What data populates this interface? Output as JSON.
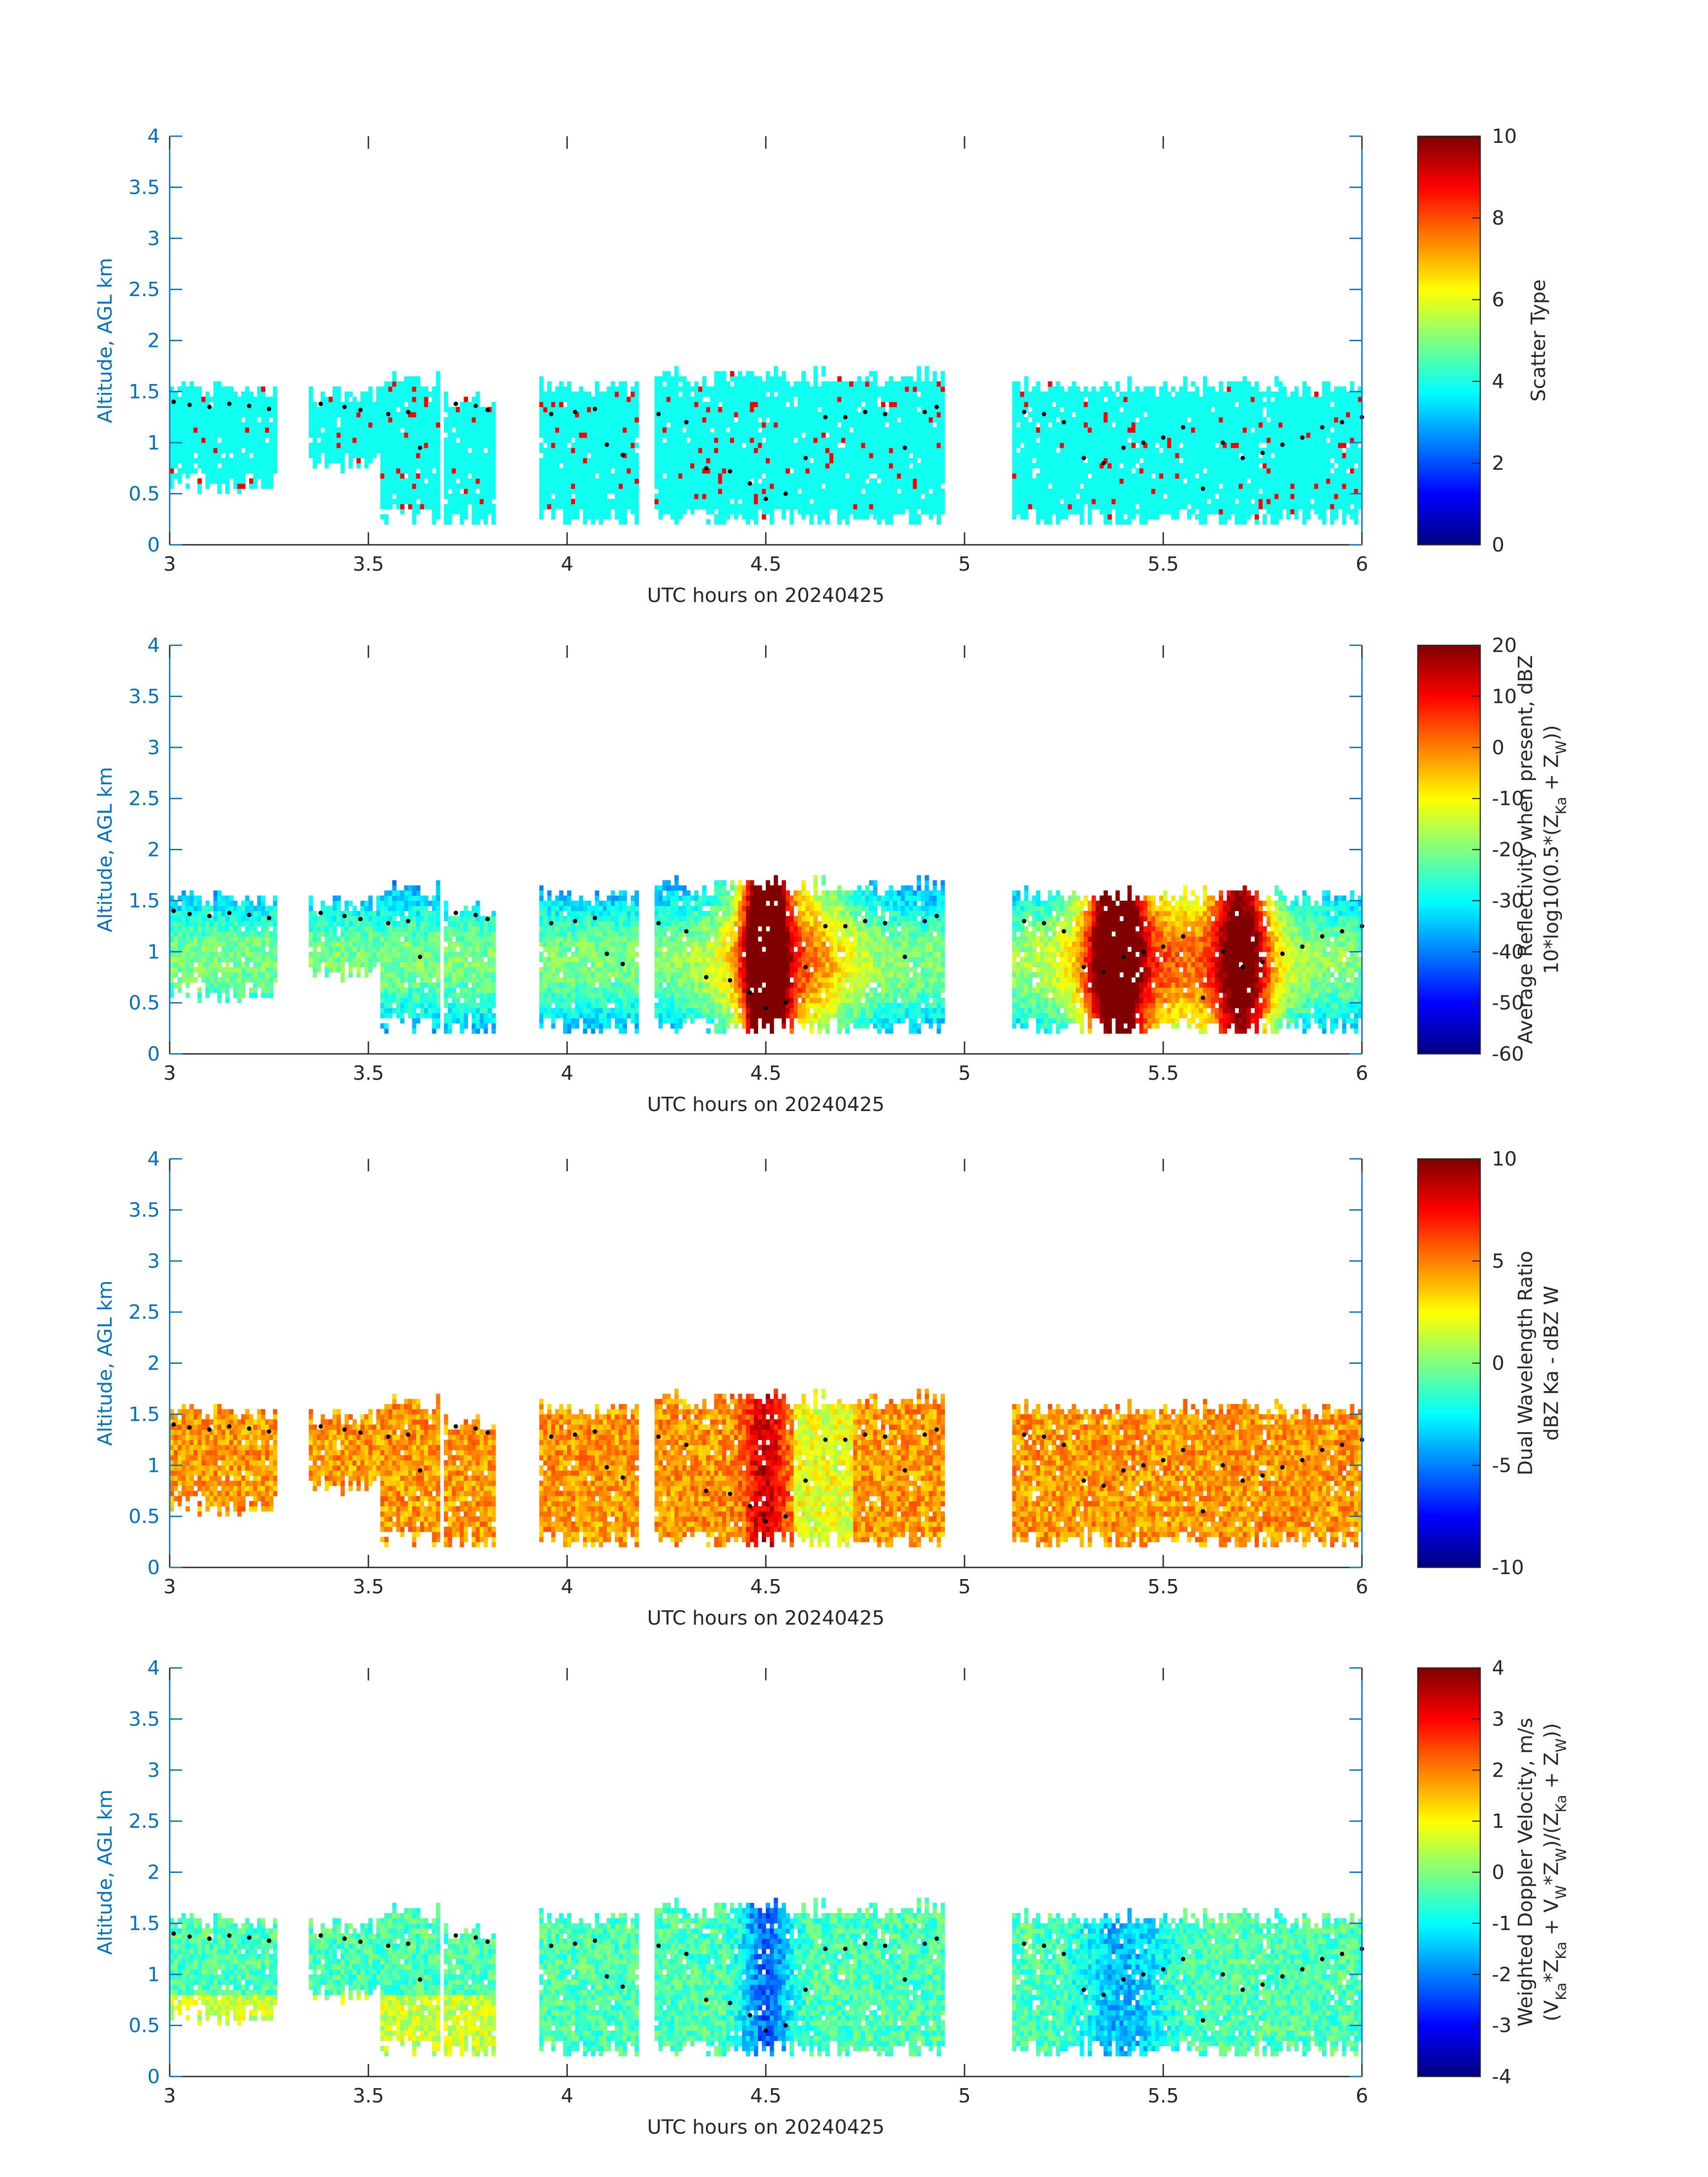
{
  "chart_data": [
    {
      "type": "heatmap",
      "xlabel": "UTC hours on 20240425",
      "ylabel": "Altitude, AGL km",
      "xlim": [
        3,
        6
      ],
      "ylim": [
        0,
        4
      ],
      "xticks": [
        "3",
        "3.5",
        "4",
        "4.5",
        "5",
        "5.5",
        "6"
      ],
      "yticks": [
        "0",
        "0.5",
        "1",
        "1.5",
        "2",
        "2.5",
        "3",
        "3.5",
        "4"
      ],
      "colorbar": {
        "label_lines": [
          "Scatter Type"
        ],
        "range": [
          0,
          10
        ],
        "ticks": [
          "0",
          "2",
          "4",
          "6",
          "8",
          "10"
        ]
      },
      "colormap": "jet",
      "field": "scatter_type",
      "grid": false
    },
    {
      "type": "heatmap",
      "xlabel": "UTC hours on 20240425",
      "ylabel": "Altitude, AGL km",
      "xlim": [
        3,
        6
      ],
      "ylim": [
        0,
        4
      ],
      "xticks": [
        "3",
        "3.5",
        "4",
        "4.5",
        "5",
        "5.5",
        "6"
      ],
      "yticks": [
        "0",
        "0.5",
        "1",
        "1.5",
        "2",
        "2.5",
        "3",
        "3.5",
        "4"
      ],
      "colorbar": {
        "label_lines": [
          "Average Reflectivity when present, dBZ",
          "10*log10(0.5*(Z_Ka + Z_W))"
        ],
        "range": [
          -60,
          20
        ],
        "ticks": [
          "-60",
          "-50",
          "-40",
          "-30",
          "-20",
          "-10",
          "0",
          "10",
          "20"
        ]
      },
      "colormap": "jet",
      "field": "reflectivity",
      "grid": false
    },
    {
      "type": "heatmap",
      "xlabel": "UTC hours on 20240425",
      "ylabel": "Altitude, AGL km",
      "xlim": [
        3,
        6
      ],
      "ylim": [
        0,
        4
      ],
      "xticks": [
        "3",
        "3.5",
        "4",
        "4.5",
        "5",
        "5.5",
        "6"
      ],
      "yticks": [
        "0",
        "0.5",
        "1",
        "1.5",
        "2",
        "2.5",
        "3",
        "3.5",
        "4"
      ],
      "colorbar": {
        "label_lines": [
          "Dual Wavelength Ratio",
          "dBZ Ka - dBZ W"
        ],
        "range": [
          -10,
          10
        ],
        "ticks": [
          "-10",
          "-5",
          "0",
          "5",
          "10"
        ]
      },
      "colormap": "jet",
      "field": "dwr",
      "grid": false
    },
    {
      "type": "heatmap",
      "xlabel": "UTC hours on 20240425",
      "ylabel": "Altitude, AGL km",
      "xlim": [
        3,
        6
      ],
      "ylim": [
        0,
        4
      ],
      "xticks": [
        "3",
        "3.5",
        "4",
        "4.5",
        "5",
        "5.5",
        "6"
      ],
      "yticks": [
        "0",
        "0.5",
        "1",
        "1.5",
        "2",
        "2.5",
        "3",
        "3.5",
        "4"
      ],
      "colorbar": {
        "label_lines": [
          "Weighted Doppler Velocity, m/s",
          "(V_Ka*Z_Ka + V_W*Z_W)/(Z_Ka + Z_W))"
        ],
        "range": [
          -4,
          4
        ],
        "ticks": [
          "-4",
          "-3",
          "-2",
          "-1",
          "0",
          "1",
          "2",
          "3",
          "4"
        ]
      },
      "colormap": "jet",
      "field": "velocity",
      "grid": false
    }
  ],
  "cloud_segments": [
    {
      "t0": 3.0,
      "t1": 3.27,
      "base": 1.05,
      "top": 1.52,
      "base_deep": 0.55
    },
    {
      "t0": 3.35,
      "t1": 3.53,
      "base": 1.05,
      "top": 1.45,
      "base_deep": 0.75
    },
    {
      "t0": 3.53,
      "t1": 3.68,
      "base": 0.22,
      "top": 1.62,
      "base_deep": 0.22
    },
    {
      "t0": 3.69,
      "t1": 3.82,
      "base": 0.25,
      "top": 1.42,
      "base_deep": 0.25
    },
    {
      "t0": 3.93,
      "t1": 4.18,
      "base": 0.22,
      "top": 1.55,
      "base_deep": 0.22
    },
    {
      "t0": 4.22,
      "t1": 4.95,
      "base": 0.2,
      "top": 1.65,
      "base_deep": 0.2
    },
    {
      "t0": 5.12,
      "t1": 6.0,
      "base": 0.2,
      "top": 1.55,
      "base_deep": 0.2
    }
  ],
  "boundary_layer_dots": [
    [
      3.01,
      1.4
    ],
    [
      3.05,
      1.37
    ],
    [
      3.1,
      1.35
    ],
    [
      3.15,
      1.38
    ],
    [
      3.2,
      1.36
    ],
    [
      3.25,
      1.33
    ],
    [
      3.38,
      1.38
    ],
    [
      3.44,
      1.35
    ],
    [
      3.48,
      1.32
    ],
    [
      3.55,
      1.28
    ],
    [
      3.6,
      1.3
    ],
    [
      3.63,
      0.95
    ],
    [
      3.72,
      1.38
    ],
    [
      3.77,
      1.36
    ],
    [
      3.8,
      1.32
    ],
    [
      3.96,
      1.28
    ],
    [
      4.02,
      1.3
    ],
    [
      4.07,
      1.33
    ],
    [
      4.1,
      0.98
    ],
    [
      4.14,
      0.88
    ],
    [
      4.23,
      1.28
    ],
    [
      4.3,
      1.2
    ],
    [
      4.35,
      0.75
    ],
    [
      4.41,
      0.72
    ],
    [
      4.46,
      0.6
    ],
    [
      4.5,
      0.45
    ],
    [
      4.55,
      0.5
    ],
    [
      4.6,
      0.85
    ],
    [
      4.65,
      1.25
    ],
    [
      4.7,
      1.25
    ],
    [
      4.75,
      1.3
    ],
    [
      4.8,
      1.28
    ],
    [
      4.85,
      0.95
    ],
    [
      4.9,
      1.3
    ],
    [
      4.93,
      1.35
    ],
    [
      5.15,
      1.3
    ],
    [
      5.2,
      1.28
    ],
    [
      5.25,
      1.2
    ],
    [
      5.3,
      0.85
    ],
    [
      5.35,
      0.8
    ],
    [
      5.4,
      0.95
    ],
    [
      5.45,
      1.0
    ],
    [
      5.5,
      1.05
    ],
    [
      5.55,
      1.15
    ],
    [
      5.6,
      0.55
    ],
    [
      5.65,
      1.0
    ],
    [
      5.7,
      0.85
    ],
    [
      5.75,
      0.9
    ],
    [
      5.8,
      0.98
    ],
    [
      5.85,
      1.05
    ],
    [
      5.9,
      1.15
    ],
    [
      5.95,
      1.2
    ],
    [
      6.0,
      1.25
    ]
  ]
}
